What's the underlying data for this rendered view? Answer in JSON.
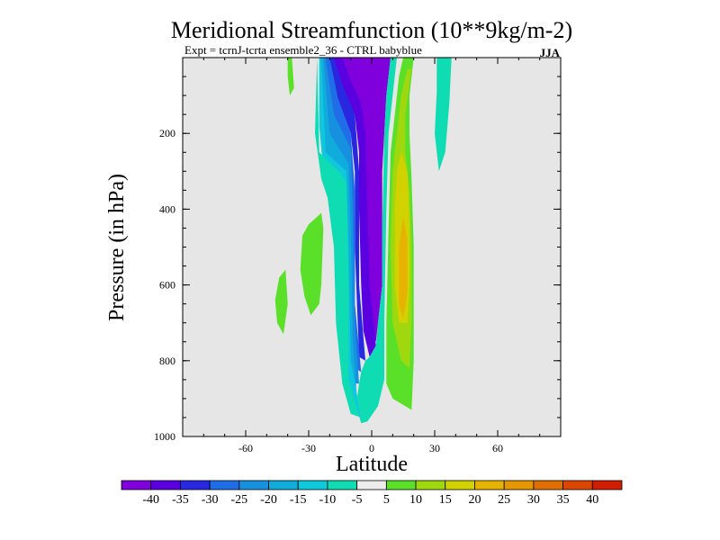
{
  "chart_data": {
    "type": "heatmap",
    "title": "Meridional Streamfunction (10**9kg/m-2)",
    "subtitle": "Expt = tcrnJ-tcrta  ensemble2_36 - CTRL babyblue",
    "season": "JJA",
    "xlabel": "Latitude",
    "ylabel": "Pressure (in hPa)",
    "xlim": [
      -90,
      90
    ],
    "ylim": [
      1000,
      0
    ],
    "x_ticks": [
      "-60",
      "-30",
      "0",
      "30",
      "60"
    ],
    "x_tick_values": [
      -60,
      -30,
      0,
      30,
      60
    ],
    "y_ticks": [
      "200",
      "400",
      "600",
      "800",
      "1000"
    ],
    "y_tick_values": [
      200,
      400,
      600,
      800,
      1000
    ],
    "background_color": "#e6e6e6",
    "colorbar": {
      "labels": [
        "-40",
        "-35",
        "-30",
        "-25",
        "-20",
        "-15",
        "-10",
        "-5",
        "5",
        "10",
        "15",
        "20",
        "25",
        "30",
        "35",
        "40"
      ],
      "colors": [
        "#7f00dc",
        "#5a00e0",
        "#2828e0",
        "#1f6ee8",
        "#1790e0",
        "#10acdc",
        "#10c8dc",
        "#10dcb4",
        "#ececec",
        "#5ae028",
        "#a0d810",
        "#d2d200",
        "#e6b400",
        "#e69600",
        "#e06e00",
        "#dc4600",
        "#d21e00"
      ]
    },
    "contour_regions": [
      {
        "level": -40,
        "color": "#7f00dc",
        "points": [
          [
            -3,
            0
          ],
          [
            9,
            0
          ],
          [
            7,
            100
          ],
          [
            6,
            200
          ],
          [
            5,
            300
          ],
          [
            5,
            450
          ],
          [
            5,
            600
          ],
          [
            3,
            700
          ],
          [
            2,
            750
          ],
          [
            -1,
            720
          ],
          [
            -3,
            600
          ],
          [
            -4,
            450
          ],
          [
            -4,
            300
          ],
          [
            -5,
            200
          ],
          [
            -8,
            120
          ],
          [
            -12,
            50
          ],
          [
            -14,
            0
          ]
        ]
      },
      {
        "level": -35,
        "color": "#5a00e0",
        "points": [
          [
            -14,
            0
          ],
          [
            -10,
            60
          ],
          [
            -5,
            120
          ],
          [
            -3,
            200
          ],
          [
            -2,
            400
          ],
          [
            -1,
            600
          ],
          [
            2,
            760
          ],
          [
            -1,
            790
          ],
          [
            -4,
            720
          ],
          [
            -5,
            600
          ],
          [
            -6,
            400
          ],
          [
            -6,
            250
          ],
          [
            -8,
            150
          ],
          [
            -12,
            110
          ],
          [
            -16,
            60
          ],
          [
            -18,
            0
          ]
        ]
      },
      {
        "level": -30,
        "color": "#2828e0",
        "points": [
          [
            -18,
            0
          ],
          [
            -14,
            70
          ],
          [
            -8,
            150
          ],
          [
            -6,
            300
          ],
          [
            -6,
            600
          ],
          [
            -3,
            800
          ],
          [
            -6,
            790
          ],
          [
            -7,
            650
          ],
          [
            -8,
            500
          ],
          [
            -8,
            300
          ],
          [
            -10,
            200
          ],
          [
            -14,
            140
          ],
          [
            -18,
            80
          ],
          [
            -20,
            0
          ]
        ]
      },
      {
        "level": -25,
        "color": "#1f6ee8",
        "points": [
          [
            -20,
            0
          ],
          [
            -16,
            110
          ],
          [
            -10,
            200
          ],
          [
            -8,
            350
          ],
          [
            -8,
            650
          ],
          [
            -5,
            830
          ],
          [
            -8,
            820
          ],
          [
            -9,
            700
          ],
          [
            -10,
            500
          ],
          [
            -10,
            350
          ],
          [
            -14,
            230
          ],
          [
            -18,
            150
          ],
          [
            -21,
            80
          ],
          [
            -22,
            0
          ]
        ]
      },
      {
        "level": -20,
        "color": "#1790e0",
        "points": [
          [
            -22,
            0
          ],
          [
            -18,
            150
          ],
          [
            -10,
            240
          ],
          [
            -9,
            400
          ],
          [
            -8,
            700
          ],
          [
            -6,
            860
          ],
          [
            -9,
            860
          ],
          [
            -10,
            750
          ],
          [
            -12,
            550
          ],
          [
            -12,
            400
          ],
          [
            -16,
            270
          ],
          [
            -20,
            200
          ],
          [
            -23,
            100
          ],
          [
            -23,
            0
          ]
        ]
      },
      {
        "level": -15,
        "color": "#10acdc",
        "points": [
          [
            -23,
            0
          ],
          [
            -20,
            200
          ],
          [
            -11,
            280
          ],
          [
            -10,
            450
          ],
          [
            -9,
            750
          ],
          [
            -7,
            900
          ],
          [
            -11,
            900
          ],
          [
            -12,
            780
          ],
          [
            -14,
            620
          ],
          [
            -14,
            430
          ],
          [
            -18,
            320
          ],
          [
            -22,
            260
          ],
          [
            -24,
            150
          ],
          [
            -24,
            0
          ]
        ]
      },
      {
        "level": -10,
        "color": "#10c8dc",
        "points": [
          [
            -24,
            0
          ],
          [
            -22,
            250
          ],
          [
            -12,
            300
          ],
          [
            -11,
            500
          ],
          [
            -10,
            800
          ],
          [
            -5,
            950
          ],
          [
            -10,
            940
          ],
          [
            -13,
            830
          ],
          [
            -16,
            680
          ],
          [
            -17,
            480
          ],
          [
            -20,
            360
          ],
          [
            -23,
            300
          ],
          [
            -25,
            180
          ],
          [
            -25,
            0
          ]
        ]
      },
      {
        "level": -5,
        "color": "#10dcb4",
        "points": [
          [
            -26,
            0
          ],
          [
            -25,
            250
          ],
          [
            -15,
            305
          ],
          [
            -12,
            330
          ],
          [
            -11,
            600
          ],
          [
            -11,
            850
          ],
          [
            -5,
            965
          ],
          [
            -2,
            960
          ],
          [
            3,
            920
          ],
          [
            6,
            850
          ],
          [
            6,
            700
          ],
          [
            7,
            400
          ],
          [
            8,
            200
          ],
          [
            10,
            100
          ],
          [
            12,
            0
          ],
          [
            9,
            0
          ],
          [
            7,
            100
          ],
          [
            6,
            200
          ],
          [
            5,
            450
          ],
          [
            5,
            600
          ],
          [
            3,
            700
          ],
          [
            2,
            760
          ],
          [
            -1,
            790
          ],
          [
            -3,
            800
          ],
          [
            -5,
            830
          ],
          [
            -6,
            860
          ],
          [
            -7,
            900
          ],
          [
            -5,
            950
          ],
          [
            -10,
            940
          ],
          [
            -14,
            860
          ],
          [
            -17,
            700
          ],
          [
            -18,
            500
          ],
          [
            -21,
            370
          ],
          [
            -24,
            320
          ],
          [
            -27,
            200
          ]
        ]
      },
      {
        "level": 10,
        "color": "#5ae028",
        "points": [
          [
            15,
            0
          ],
          [
            20,
            0
          ],
          [
            18,
            100
          ],
          [
            18,
            200
          ],
          [
            19,
            320
          ],
          [
            20,
            500
          ],
          [
            20,
            650
          ],
          [
            20,
            800
          ],
          [
            19,
            930
          ],
          [
            16,
            920
          ],
          [
            10,
            900
          ],
          [
            7,
            860
          ],
          [
            7,
            700
          ],
          [
            8,
            450
          ],
          [
            9,
            250
          ],
          [
            11,
            150
          ],
          [
            13,
            50
          ]
        ]
      },
      {
        "level": 15,
        "color": "#a0d810",
        "points": [
          [
            17,
            30
          ],
          [
            19,
            30
          ],
          [
            16,
            150
          ],
          [
            16,
            250
          ],
          [
            18,
            350
          ],
          [
            19,
            500
          ],
          [
            19,
            700
          ],
          [
            18,
            820
          ],
          [
            14,
            800
          ],
          [
            10,
            700
          ],
          [
            9,
            500
          ],
          [
            10,
            300
          ],
          [
            12,
            200
          ],
          [
            14,
            100
          ]
        ]
      },
      {
        "level": 20,
        "color": "#d2d200",
        "points": [
          [
            14,
            250
          ],
          [
            17,
            300
          ],
          [
            18,
            450
          ],
          [
            18,
            600
          ],
          [
            17,
            700
          ],
          [
            13,
            700
          ],
          [
            11,
            600
          ],
          [
            11,
            400
          ],
          [
            12,
            300
          ]
        ]
      },
      {
        "level": 25,
        "color": "#e6b400",
        "points": [
          [
            15,
            420
          ],
          [
            17,
            480
          ],
          [
            17,
            620
          ],
          [
            15,
            690
          ],
          [
            13,
            650
          ],
          [
            13,
            500
          ]
        ]
      },
      {
        "level": 10,
        "color": "#5ae028",
        "points": [
          [
            -40,
            0
          ],
          [
            -38,
            0
          ],
          [
            -37,
            80
          ],
          [
            -39,
            100
          ],
          [
            -40,
            50
          ]
        ]
      },
      {
        "level": 10,
        "color": "#5ae028",
        "points": [
          [
            -33,
            470
          ],
          [
            -30,
            440
          ],
          [
            -24,
            410
          ],
          [
            -23,
            450
          ],
          [
            -24,
            600
          ],
          [
            -25,
            650
          ],
          [
            -29,
            680
          ],
          [
            -32,
            630
          ],
          [
            -34,
            560
          ]
        ]
      },
      {
        "level": 10,
        "color": "#5ae028",
        "points": [
          [
            -44,
            580
          ],
          [
            -41,
            560
          ],
          [
            -40,
            650
          ],
          [
            -42,
            730
          ],
          [
            -45,
            700
          ],
          [
            -46,
            640
          ]
        ]
      },
      {
        "level": -5,
        "color": "#10dcb4",
        "points": [
          [
            31,
            0
          ],
          [
            38,
            0
          ],
          [
            37,
            120
          ],
          [
            35,
            250
          ],
          [
            32,
            300
          ],
          [
            30,
            200
          ],
          [
            31,
            90
          ]
        ]
      }
    ]
  }
}
